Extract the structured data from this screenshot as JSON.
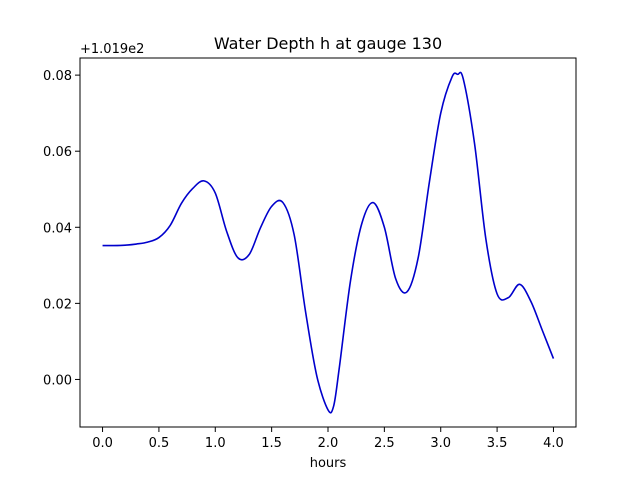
{
  "chart_data": {
    "type": "line",
    "title": "Water Depth h at gauge 130",
    "xlabel": "hours",
    "ylabel": "",
    "y_offset_label": "+1.019e2",
    "xlim": [
      -0.2,
      4.2
    ],
    "ylim": [
      -0.0125,
      0.0845
    ],
    "x_ticks": [
      0.0,
      0.5,
      1.0,
      1.5,
      2.0,
      2.5,
      3.0,
      3.5,
      4.0
    ],
    "x_tick_labels": [
      "0.0",
      "0.5",
      "1.0",
      "1.5",
      "2.0",
      "2.5",
      "3.0",
      "3.5",
      "4.0"
    ],
    "y_ticks": [
      0.0,
      0.02,
      0.04,
      0.06,
      0.08
    ],
    "y_tick_labels": [
      "0.00",
      "0.02",
      "0.04",
      "0.06",
      "0.08"
    ],
    "grid": false,
    "series": [
      {
        "color": "#0000cc",
        "x": [
          0.0,
          0.1,
          0.2,
          0.3,
          0.4,
          0.5,
          0.6,
          0.7,
          0.8,
          0.9,
          1.0,
          1.1,
          1.2,
          1.3,
          1.4,
          1.5,
          1.6,
          1.7,
          1.8,
          1.9,
          2.0,
          2.05,
          2.1,
          2.2,
          2.3,
          2.4,
          2.5,
          2.6,
          2.7,
          2.8,
          2.9,
          3.0,
          3.1,
          3.15,
          3.2,
          3.3,
          3.4,
          3.5,
          3.6,
          3.7,
          3.8,
          3.9,
          4.0
        ],
        "values": [
          0.0352,
          0.0352,
          0.0353,
          0.0356,
          0.0361,
          0.0373,
          0.0405,
          0.0463,
          0.0502,
          0.0522,
          0.049,
          0.039,
          0.032,
          0.0328,
          0.0398,
          0.0455,
          0.0465,
          0.038,
          0.018,
          0.001,
          -0.008,
          -0.007,
          0.003,
          0.026,
          0.041,
          0.0465,
          0.04,
          0.0265,
          0.023,
          0.032,
          0.052,
          0.07,
          0.0795,
          0.0802,
          0.079,
          0.062,
          0.037,
          0.0225,
          0.0215,
          0.025,
          0.0205,
          0.013,
          0.0055
        ]
      }
    ]
  }
}
